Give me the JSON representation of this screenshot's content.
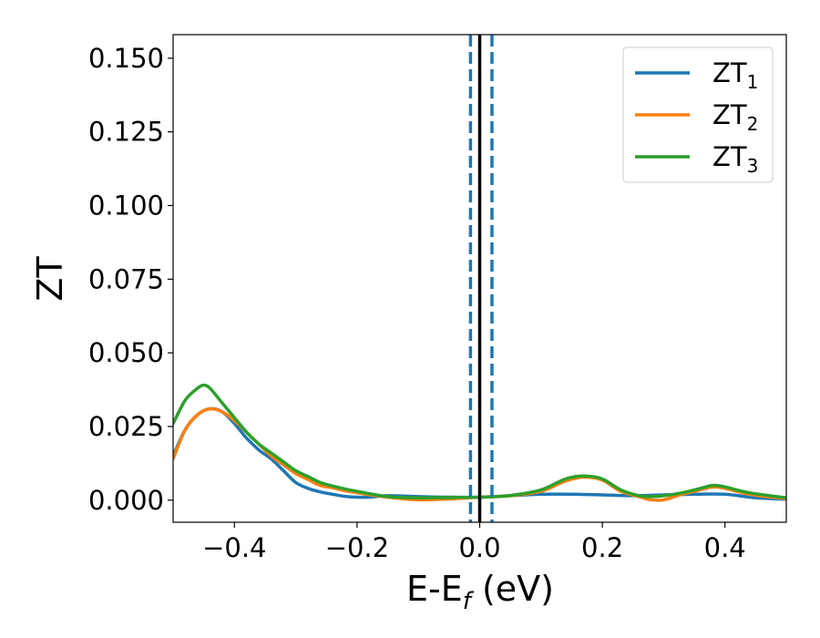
{
  "chart_data": {
    "type": "line",
    "xlabel": {
      "main": "E-E",
      "sub": "f",
      "unit": " (eV)"
    },
    "ylabel": "ZT",
    "xlim": [
      -0.5,
      0.5
    ],
    "ylim": [
      -0.0075,
      0.158
    ],
    "xticks": [
      -0.4,
      -0.2,
      0.0,
      0.2,
      0.4
    ],
    "xtick_labels": [
      "−0.4",
      "−0.2",
      "0.0",
      "0.2",
      "0.4"
    ],
    "yticks": [
      0.0,
      0.025,
      0.05,
      0.075,
      0.1,
      0.125,
      0.15
    ],
    "ytick_labels": [
      "0.000",
      "0.025",
      "0.050",
      "0.075",
      "0.100",
      "0.125",
      "0.150"
    ],
    "grid": false,
    "legend_position": "top-right",
    "vlines": [
      {
        "x": 0.0,
        "color": "#000000",
        "style": "solid"
      },
      {
        "x": -0.015,
        "color": "#1f77b4",
        "style": "dashed"
      },
      {
        "x": 0.02,
        "color": "#1f77b4",
        "style": "dashed"
      }
    ],
    "series": [
      {
        "name": "ZT",
        "sub": "1",
        "color": "#1f77b4",
        "x": [
          -0.5,
          -0.48,
          -0.46,
          -0.44,
          -0.42,
          -0.4,
          -0.38,
          -0.36,
          -0.34,
          -0.32,
          -0.3,
          -0.28,
          -0.26,
          -0.24,
          -0.22,
          -0.2,
          -0.18,
          -0.15,
          -0.1,
          -0.05,
          0.0,
          0.05,
          0.1,
          0.15,
          0.2,
          0.25,
          0.3,
          0.35,
          0.4,
          0.45,
          0.5
        ],
        "y": [
          0.015,
          0.024,
          0.029,
          0.031,
          0.03,
          0.026,
          0.021,
          0.017,
          0.014,
          0.01,
          0.006,
          0.004,
          0.0028,
          0.002,
          0.0013,
          0.001,
          0.001,
          0.0015,
          0.0012,
          0.001,
          0.001,
          0.0015,
          0.002,
          0.002,
          0.0018,
          0.0015,
          0.0018,
          0.002,
          0.002,
          0.0008,
          0.0003
        ]
      },
      {
        "name": "ZT",
        "sub": "2",
        "color": "#ff7f0e",
        "x": [
          -0.5,
          -0.48,
          -0.46,
          -0.44,
          -0.42,
          -0.4,
          -0.38,
          -0.36,
          -0.34,
          -0.32,
          -0.3,
          -0.28,
          -0.26,
          -0.24,
          -0.22,
          -0.2,
          -0.15,
          -0.1,
          -0.05,
          0.0,
          0.05,
          0.1,
          0.14,
          0.17,
          0.2,
          0.23,
          0.26,
          0.28,
          0.3,
          0.33,
          0.36,
          0.38,
          0.4,
          0.44,
          0.5
        ],
        "y": [
          0.014,
          0.024,
          0.029,
          0.031,
          0.03,
          0.027,
          0.023,
          0.019,
          0.015,
          0.012,
          0.009,
          0.007,
          0.005,
          0.0042,
          0.0032,
          0.0025,
          0.001,
          0.0001,
          0.0004,
          0.001,
          0.0015,
          0.003,
          0.0065,
          0.0078,
          0.0068,
          0.003,
          0.0012,
          0.0001,
          0.0001,
          0.002,
          0.0035,
          0.0045,
          0.004,
          0.002,
          0.0005
        ]
      },
      {
        "name": "ZT",
        "sub": "3",
        "color": "#2ca02c",
        "x": [
          -0.5,
          -0.48,
          -0.46,
          -0.45,
          -0.44,
          -0.42,
          -0.4,
          -0.38,
          -0.36,
          -0.34,
          -0.32,
          -0.3,
          -0.28,
          -0.26,
          -0.24,
          -0.22,
          -0.2,
          -0.15,
          -0.1,
          -0.05,
          0.0,
          0.05,
          0.1,
          0.14,
          0.17,
          0.2,
          0.23,
          0.26,
          0.28,
          0.3,
          0.33,
          0.36,
          0.38,
          0.4,
          0.44,
          0.5
        ],
        "y": [
          0.026,
          0.034,
          0.038,
          0.039,
          0.038,
          0.033,
          0.028,
          0.023,
          0.019,
          0.016,
          0.013,
          0.01,
          0.008,
          0.006,
          0.0048,
          0.0038,
          0.003,
          0.0012,
          0.0008,
          0.0009,
          0.001,
          0.0016,
          0.0035,
          0.0072,
          0.0082,
          0.0072,
          0.0035,
          0.0015,
          0.0012,
          0.0015,
          0.0025,
          0.004,
          0.005,
          0.0045,
          0.0025,
          0.0008
        ]
      }
    ]
  }
}
